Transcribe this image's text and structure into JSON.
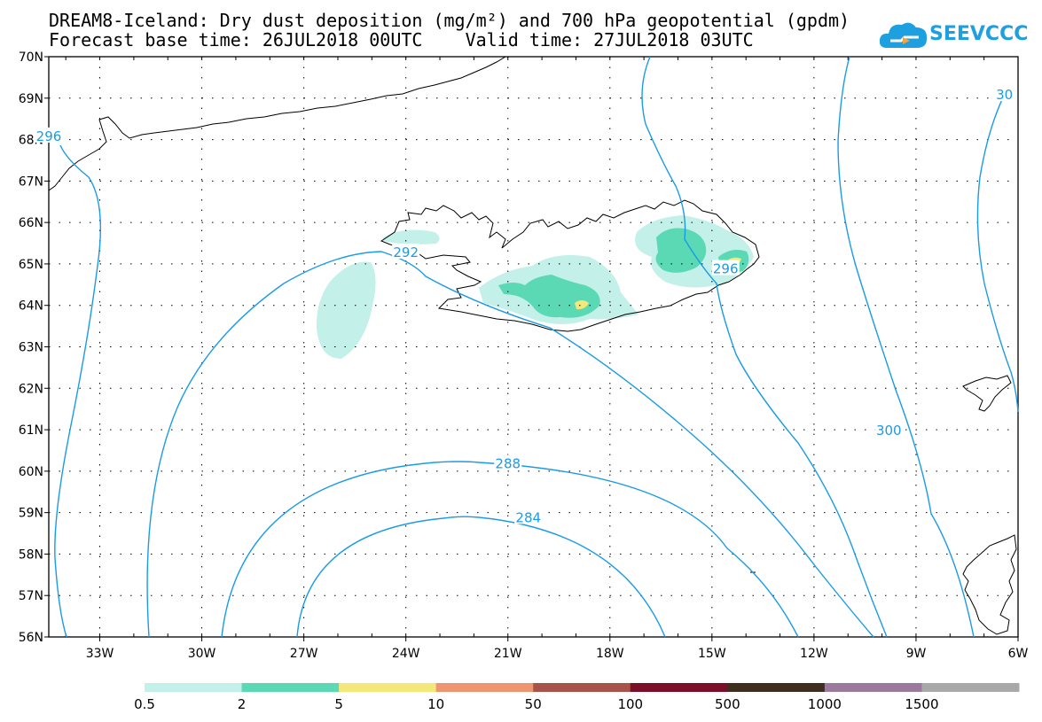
{
  "header": {
    "title_line1": "DREAM8-Iceland: Dry dust deposition (mg/m²) and 700 hPa geopotential (gpdm)",
    "title_line2": "Forecast base time: 26JUL2018 00UTC    Valid time: 27JUL2018 03UTC",
    "logo_text": "SEEVCCC"
  },
  "map": {
    "lat_range": [
      56,
      70
    ],
    "lon_range": [
      -34.5,
      -6
    ],
    "lat_labels": [
      "56N",
      "57N",
      "58N",
      "59N",
      "60N",
      "61N",
      "62N",
      "63N",
      "64N",
      "65N",
      "66N",
      "67N",
      "68N",
      "69N",
      "70N"
    ],
    "lon_labels": [
      "33W",
      "30W",
      "27W",
      "24W",
      "21W",
      "18W",
      "15W",
      "12W",
      "9W",
      "6W"
    ],
    "contour_labels": [
      {
        "text": "284",
        "lon": -20.4,
        "lat": 58.9
      },
      {
        "text": "288",
        "lon": -21.0,
        "lat": 60.2
      },
      {
        "text": "292",
        "lon": -24.0,
        "lat": 65.3
      },
      {
        "text": "296",
        "lon": -34.5,
        "lat": 68.1
      },
      {
        "text": "296",
        "lon": -14.6,
        "lat": 64.9
      },
      {
        "text": "300",
        "lon": -9.8,
        "lat": 61.0
      },
      {
        "text": "30",
        "lon": -6.4,
        "lat": 69.1
      }
    ],
    "contour_color": "#1a9be6",
    "coast_color": "#000000"
  },
  "legend": {
    "colors": [
      "#c4f0ea",
      "#5ad9b4",
      "#f5e87a",
      "#ef9671",
      "#a8524a",
      "#7c0f28",
      "#3d2e1e",
      "#9c7a9e",
      "#a9a9a9"
    ],
    "labels": [
      "0.5",
      "2",
      "5",
      "10",
      "50",
      "100",
      "500",
      "1000",
      "1500"
    ]
  }
}
